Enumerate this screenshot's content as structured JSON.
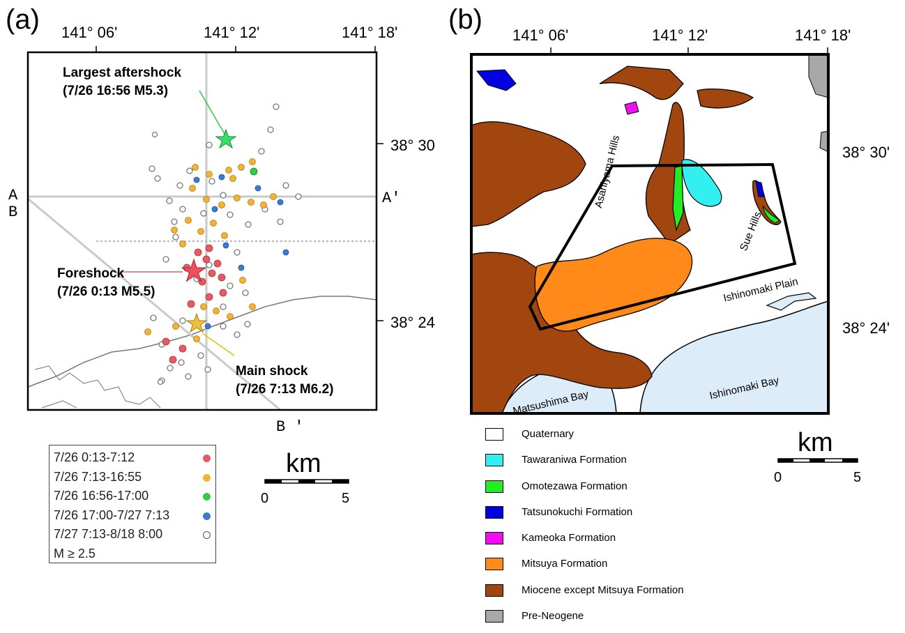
{
  "panel_a": {
    "label": "(a)",
    "longitudes": [
      "141° 06'",
      "141° 12'",
      "141° 18'"
    ],
    "latitudes": [
      "38° 30",
      "38° 24"
    ],
    "section_labels": {
      "a": "A",
      "a_prime": "A'",
      "b": "B",
      "b_prime": "B '"
    },
    "callouts": {
      "largest_aftershock": {
        "line1": "Largest aftershock",
        "line2": "(7/26 16:56 M5.3)"
      },
      "foreshock": {
        "line1": "Foreshock",
        "line2": "(7/26 0:13 M5.5)"
      },
      "main_shock": {
        "line1": "Main shock",
        "line2": "(7/26 7:13 M6.2)"
      }
    },
    "legend": [
      {
        "label": "7/26 0:13-7:12",
        "color": "#e85a62"
      },
      {
        "label": "7/26 7:13-16:55",
        "color": "#f2b233"
      },
      {
        "label": "7/26 16:56-17:00",
        "color": "#2ecc48"
      },
      {
        "label": "7/26 17:00-7/27 7:13",
        "color": "#3a7bd5"
      },
      {
        "label": "7/27 7:13-8/18 8:00",
        "color": "#ffffff"
      }
    ],
    "legend_note": "M ≥ 2.5",
    "scale": {
      "unit": "km",
      "min": "0",
      "max": "5"
    }
  },
  "panel_b": {
    "label": "(b)",
    "longitudes": [
      "141° 06'",
      "141° 12'",
      "141° 18'"
    ],
    "latitudes": [
      "38° 30'",
      "38° 24'"
    ],
    "place_names": {
      "asahiyama": "Asahiyama Hills",
      "sue": "Sue Hills",
      "ishinomaki_plain": "Ishinomaki Plain",
      "ishinomaki_bay": "Ishinomaki Bay",
      "matsushima_bay": "Matsushima Bay"
    },
    "legend": [
      {
        "label": "Quaternary",
        "color": "#ffffff"
      },
      {
        "label": "Tawaraniwa Formation",
        "color": "#33f0f0"
      },
      {
        "label": "Omotezawa Formation",
        "color": "#22ee22"
      },
      {
        "label": "Tatsunokuchi Formation",
        "color": "#0000e0"
      },
      {
        "label": "Kameoka Formation",
        "color": "#ee10ee"
      },
      {
        "label": "Mitsuya Formation",
        "color": "#ff8a1a"
      },
      {
        "label": "Miocene except Mitsuya Formation",
        "color": "#a0460e"
      },
      {
        "label": "Pre-Neogene",
        "color": "#a8a8a8"
      }
    ],
    "scale": {
      "unit": "km",
      "min": "0",
      "max": "5"
    }
  },
  "colors": {
    "sea": "#dcecf9",
    "miocene": "#a0460e",
    "mitsuya": "#ff8a1a"
  }
}
